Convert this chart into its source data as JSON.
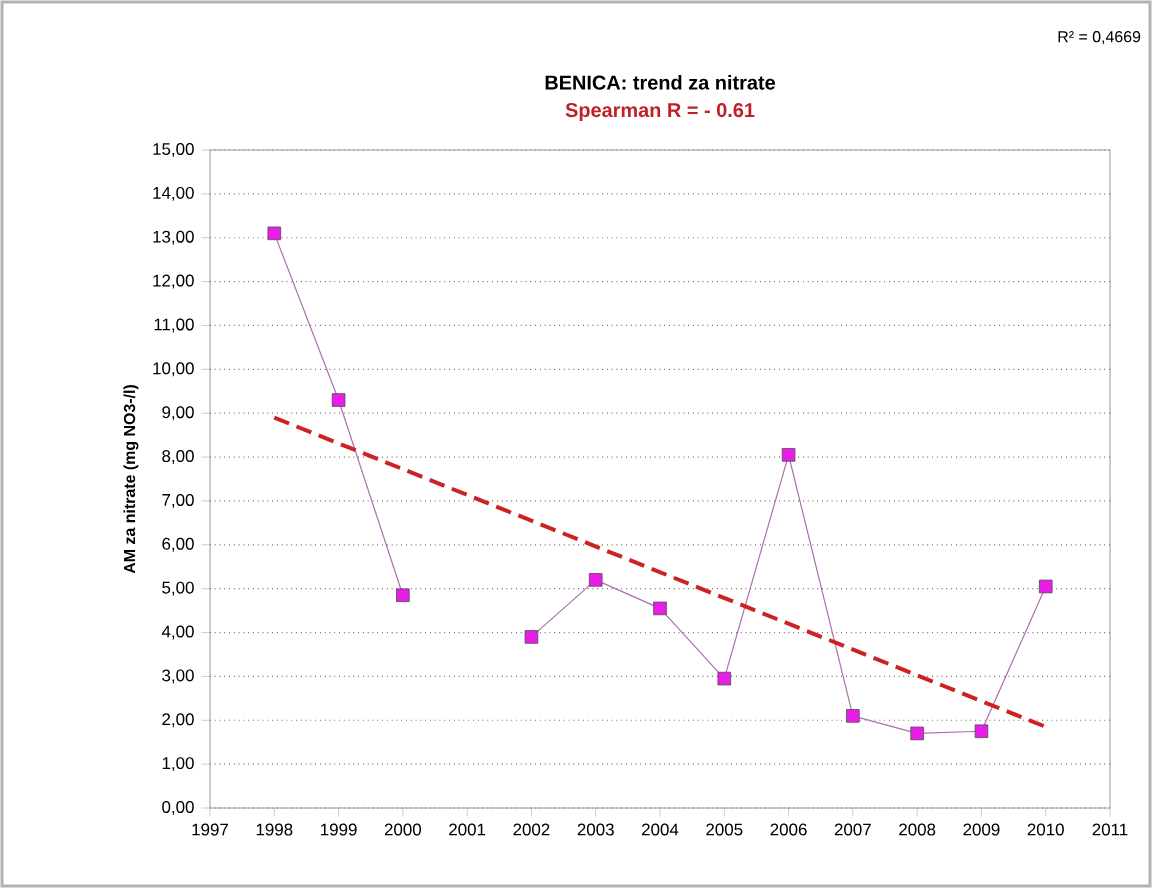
{
  "chart_data": {
    "type": "line",
    "title": "BENICA: trend za nitrate",
    "subtitle": "Spearman R = - 0.61",
    "ylabel": "AM za nitrate (mg NO3-/l)",
    "annotations": [
      "R² = 0,4669"
    ],
    "x": [
      1998,
      1999,
      2000,
      2001,
      2002,
      2003,
      2004,
      2005,
      2006,
      2007,
      2008,
      2009,
      2010
    ],
    "series": [
      {
        "color": "#e81ee8",
        "marker": "square",
        "line_style": "solid",
        "values": [
          13.1,
          9.3,
          4.85,
          null,
          3.9,
          5.2,
          4.55,
          2.95,
          8.05,
          2.1,
          1.7,
          1.75,
          5.05
        ]
      },
      {
        "color": "#cc2222",
        "marker": "none",
        "line_style": "dashed",
        "x": [
          1998,
          2010
        ],
        "values": [
          8.9,
          1.85
        ]
      }
    ],
    "xlim": [
      1997,
      2011
    ],
    "xticks": [
      1997,
      1998,
      1999,
      2000,
      2001,
      2002,
      2003,
      2004,
      2005,
      2006,
      2007,
      2008,
      2009,
      2010,
      2011
    ],
    "ylim": [
      0,
      15
    ],
    "yticks": [
      {
        "value": 0,
        "label": "0,00"
      },
      {
        "value": 1,
        "label": "1,00"
      },
      {
        "value": 2,
        "label": "2,00"
      },
      {
        "value": 3,
        "label": "3,00"
      },
      {
        "value": 4,
        "label": "4,00"
      },
      {
        "value": 5,
        "label": "5,00"
      },
      {
        "value": 6,
        "label": "6,00"
      },
      {
        "value": 7,
        "label": "7,00"
      },
      {
        "value": 8,
        "label": "8,00"
      },
      {
        "value": 9,
        "label": "9,00"
      },
      {
        "value": 10,
        "label": "10,00"
      },
      {
        "value": 11,
        "label": "11,00"
      },
      {
        "value": 12,
        "label": "12,00"
      },
      {
        "value": 13,
        "label": "13,00"
      },
      {
        "value": 14,
        "label": "14,00"
      },
      {
        "value": 15,
        "label": "15,00"
      }
    ],
    "grid": "y"
  }
}
